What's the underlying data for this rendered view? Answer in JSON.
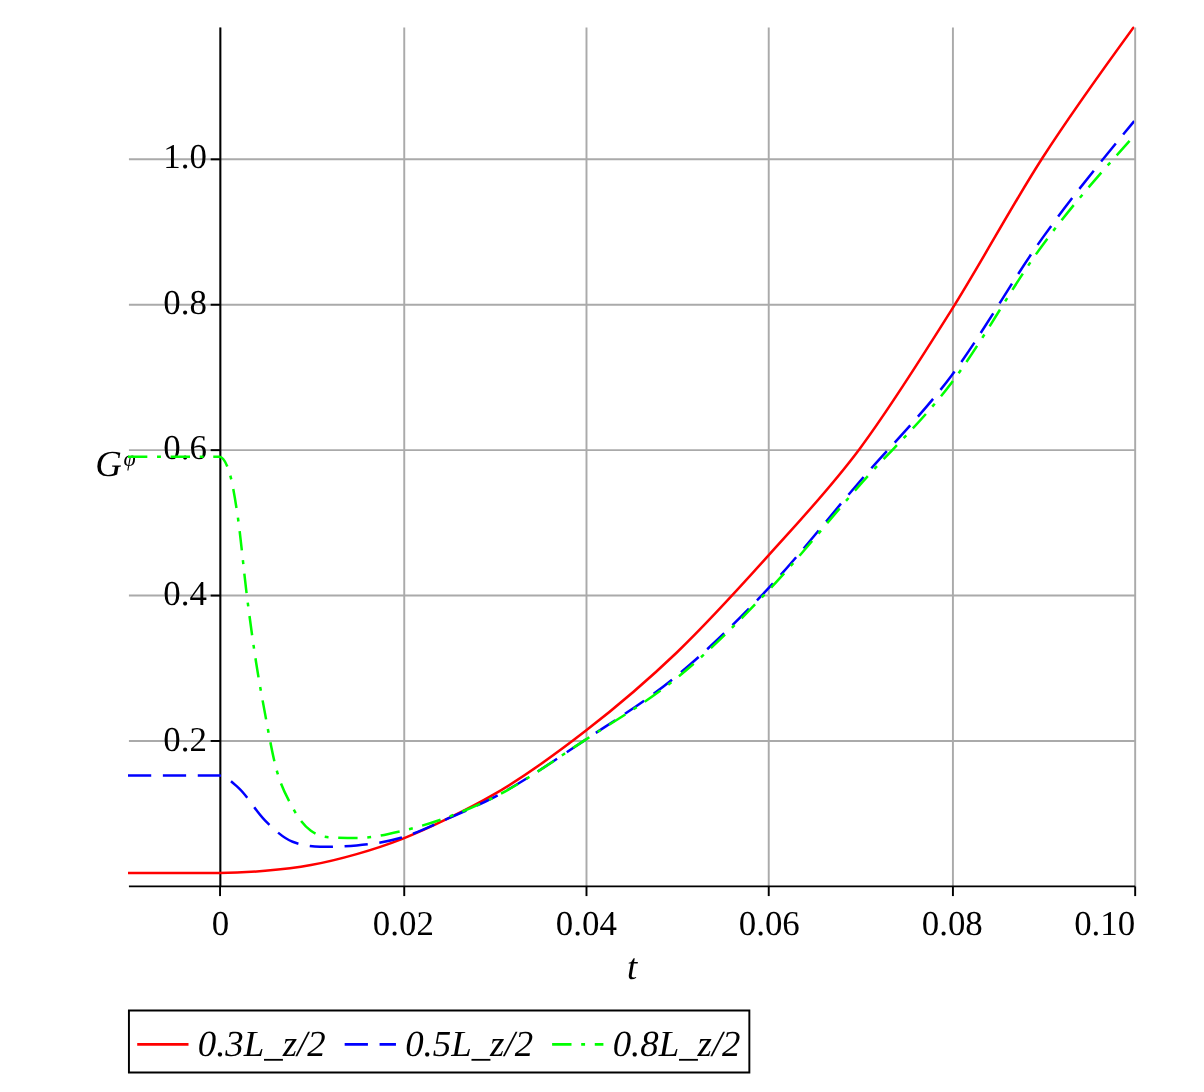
{
  "chart_data": {
    "type": "line",
    "xlabel": "t",
    "ylabel": "Gᵠ",
    "xlim": [
      -0.01,
      0.1
    ],
    "xticks": [
      0,
      0.02,
      0.04,
      0.06,
      0.08,
      {
        "value": 0.1,
        "label": "0.10"
      }
    ],
    "ylim": [
      0,
      1.18
    ],
    "yticks": [
      0.2,
      0.4,
      0.6,
      0.8,
      {
        "value": 1.0,
        "label": "1.0"
      }
    ],
    "grid": true,
    "legend": "bottom",
    "marker": "none",
    "series": [
      {
        "name": "0.3L_z/2",
        "color": "#ff0000",
        "line_style": "solid",
        "x": [
          -0.01,
          0,
          0.005,
          0.01,
          0.015,
          0.02,
          0.025,
          0.03,
          0.04,
          0.05,
          0.06,
          0.07,
          0.08,
          0.09,
          0.1
        ],
        "values": [
          0.017,
          0.017,
          0.02,
          0.028,
          0.043,
          0.064,
          0.092,
          0.125,
          0.212,
          0.32,
          0.453,
          0.6,
          0.79,
          1.0,
          1.18
        ]
      },
      {
        "name": "0.5L_z/2",
        "color": "#0000ff",
        "line_style": "dashed",
        "x": [
          -0.01,
          0,
          0.002,
          0.005,
          0.008,
          0.011,
          0.015,
          0.02,
          0.025,
          0.03,
          0.04,
          0.05,
          0.06,
          0.07,
          0.08,
          0.09,
          0.1
        ],
        "values": [
          0.151,
          0.151,
          0.135,
          0.089,
          0.06,
          0.053,
          0.055,
          0.066,
          0.092,
          0.121,
          0.2,
          0.288,
          0.408,
          0.555,
          0.7,
          0.89,
          1.05
        ]
      },
      {
        "name": "0.8L_z/2",
        "color": "#00ff00",
        "line_style": "dashdot",
        "x": [
          -0.01,
          0,
          0.001,
          0.002,
          0.003,
          0.004,
          0.005,
          0.006,
          0.008,
          0.01,
          0.012,
          0.015,
          0.02,
          0.025,
          0.03,
          0.04,
          0.05,
          0.06,
          0.07,
          0.08,
          0.09,
          0.1
        ],
        "values": [
          0.589,
          0.589,
          0.571,
          0.507,
          0.398,
          0.307,
          0.235,
          0.171,
          0.107,
          0.075,
          0.066,
          0.065,
          0.075,
          0.094,
          0.121,
          0.2,
          0.285,
          0.405,
          0.55,
          0.69,
          0.88,
          1.03
        ]
      }
    ]
  }
}
